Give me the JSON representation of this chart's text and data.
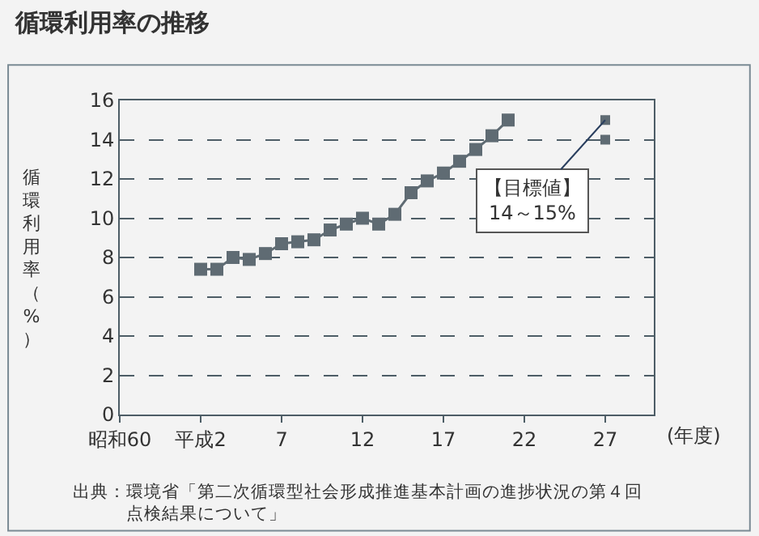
{
  "chart_data": {
    "type": "line",
    "title": "循環利用率の推移",
    "ylabel": "循環利用率（%）",
    "xlabel": "(年度)",
    "series": [
      {
        "color": "#5f6b73",
        "x": [
          2,
          3,
          4,
          5,
          6,
          7,
          8,
          9,
          10,
          11,
          12,
          13,
          14,
          15,
          16,
          17,
          18,
          19,
          20,
          21
        ],
        "values": [
          7.4,
          7.4,
          8.0,
          7.9,
          8.2,
          8.7,
          8.8,
          8.9,
          9.4,
          9.7,
          10.0,
          9.7,
          10.2,
          11.3,
          11.9,
          12.3,
          12.9,
          13.5,
          14.2,
          15.0
        ]
      },
      {
        "type": "scatter",
        "color": "#5f6b73",
        "x": [
          27,
          27
        ],
        "values": [
          14,
          15
        ]
      }
    ],
    "annotations": [
      {
        "text": "【目標値】\n14～15%",
        "x": 27,
        "y": 15
      },
      "出典：環境省「第二次循環型社会形成推進基本計画の進捗状況の第４回点検結果について」"
    ],
    "xlim": [
      -3,
      30
    ],
    "ylim": [
      0,
      16
    ],
    "xticks": [
      {
        "value": -3,
        "label": "昭和60"
      },
      {
        "value": 2,
        "label": "平成2"
      },
      7,
      12,
      17,
      22,
      27
    ],
    "yticks": [
      0,
      2,
      4,
      6,
      8,
      10,
      12,
      14,
      16
    ],
    "grid": "y",
    "marker": "square",
    "line_style": "solid"
  }
}
